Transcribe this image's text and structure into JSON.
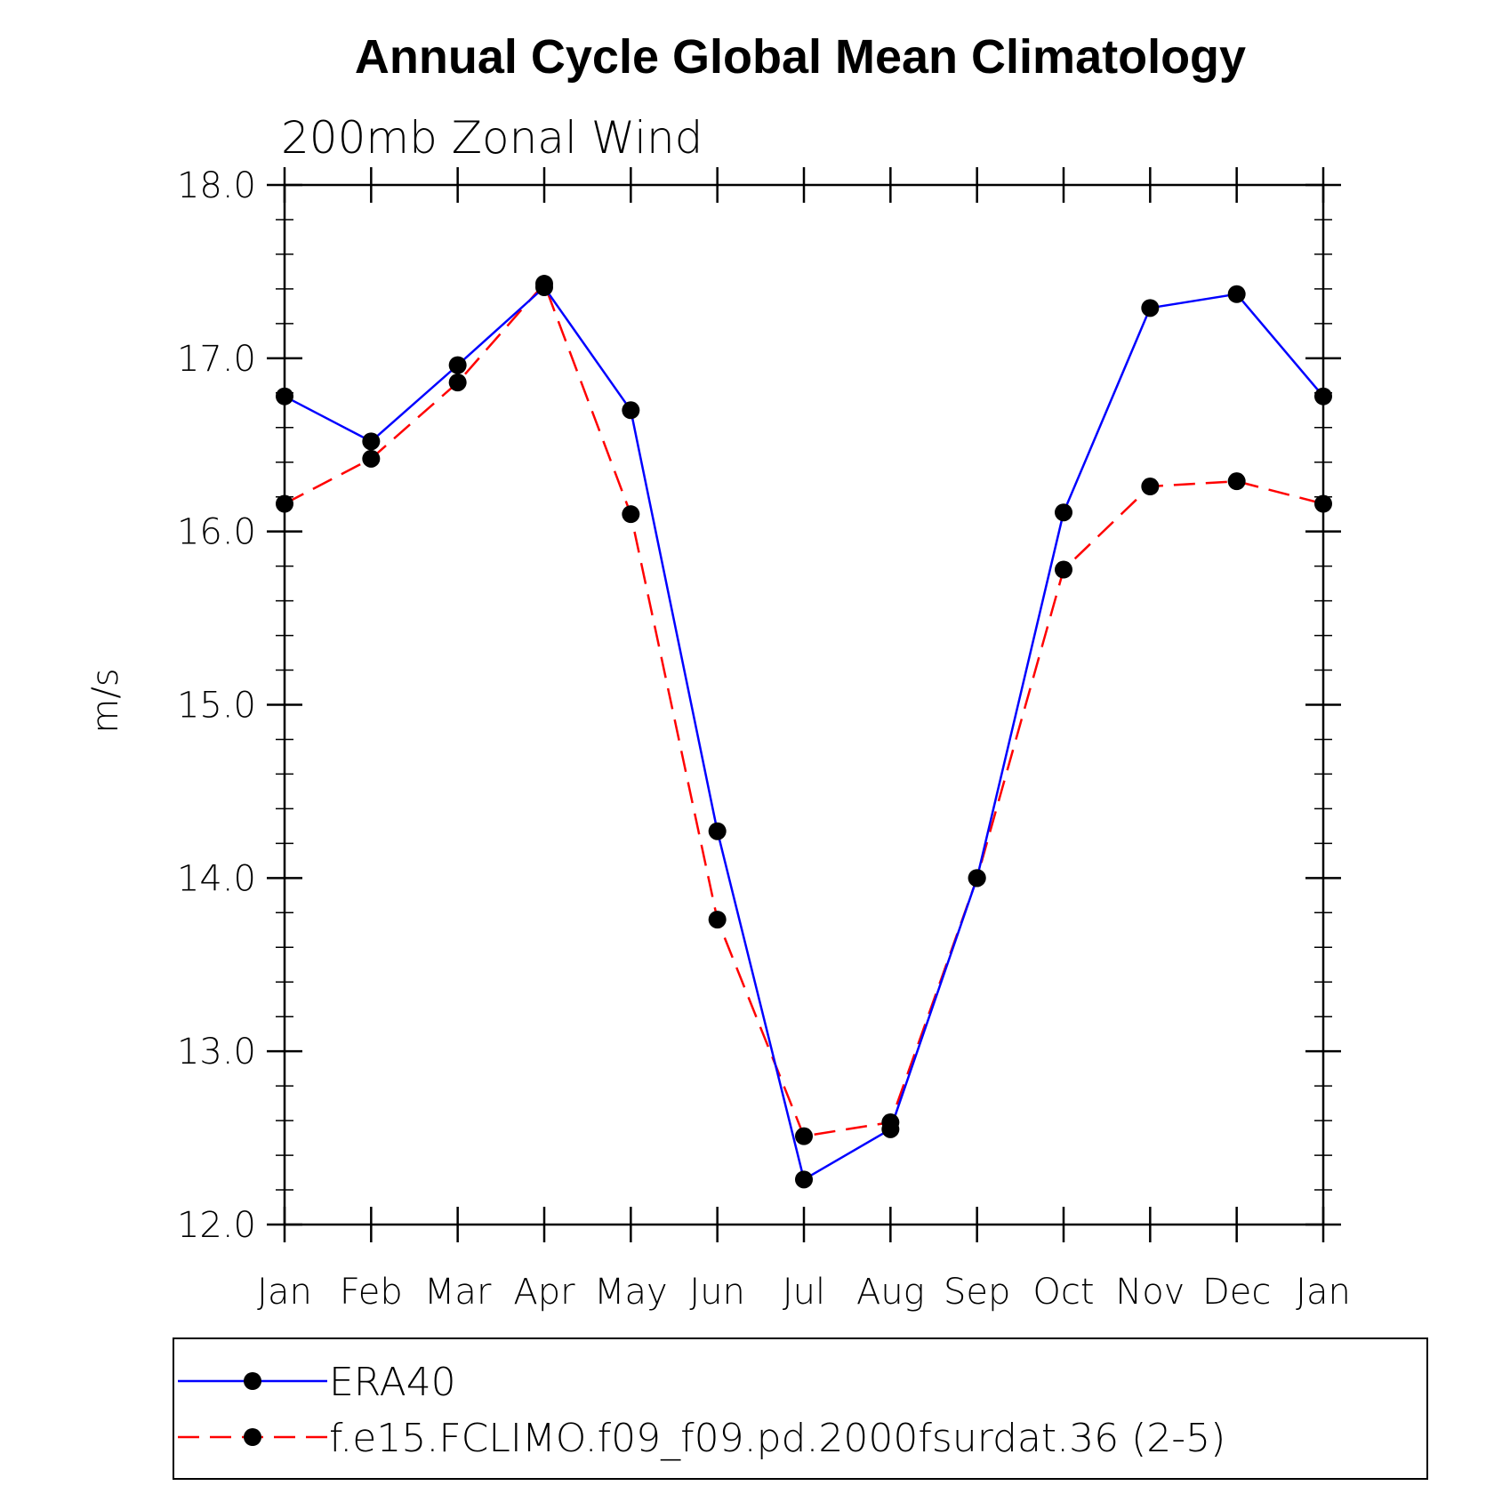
{
  "chart_data": {
    "type": "line",
    "title": "Annual Cycle Global Mean Climatology",
    "subtitle": "200mb Zonal Wind",
    "ylabel": "m/s",
    "xlabel": "",
    "categories": [
      "Jan",
      "Feb",
      "Mar",
      "Apr",
      "May",
      "Jun",
      "Jul",
      "Aug",
      "Sep",
      "Oct",
      "Nov",
      "Dec",
      "Jan"
    ],
    "ylim": [
      12.0,
      18.0
    ],
    "yticks": [
      12.0,
      13.0,
      14.0,
      15.0,
      16.0,
      17.0,
      18.0
    ],
    "ytick_labels": [
      "12.0",
      "13.0",
      "14.0",
      "15.0",
      "16.0",
      "17.0",
      "18.0"
    ],
    "series": [
      {
        "name": "ERA40",
        "color": "#0000ff",
        "dash": "solid",
        "values": [
          16.78,
          16.52,
          16.96,
          17.41,
          16.7,
          14.27,
          12.26,
          12.55,
          14.0,
          16.11,
          17.29,
          17.37,
          16.78
        ]
      },
      {
        "name": "f.e15.FCLIMO.f09_f09.pd.2000fsurdat.36 (2-5)",
        "color": "#ff0000",
        "dash": "dashed",
        "values": [
          16.16,
          16.42,
          16.86,
          17.43,
          16.1,
          13.76,
          12.51,
          12.59,
          14.0,
          15.78,
          16.26,
          16.29,
          16.16
        ]
      }
    ],
    "marker": "filled-circle",
    "marker_color": "#000000",
    "grid": false,
    "legend_position": "bottom"
  }
}
